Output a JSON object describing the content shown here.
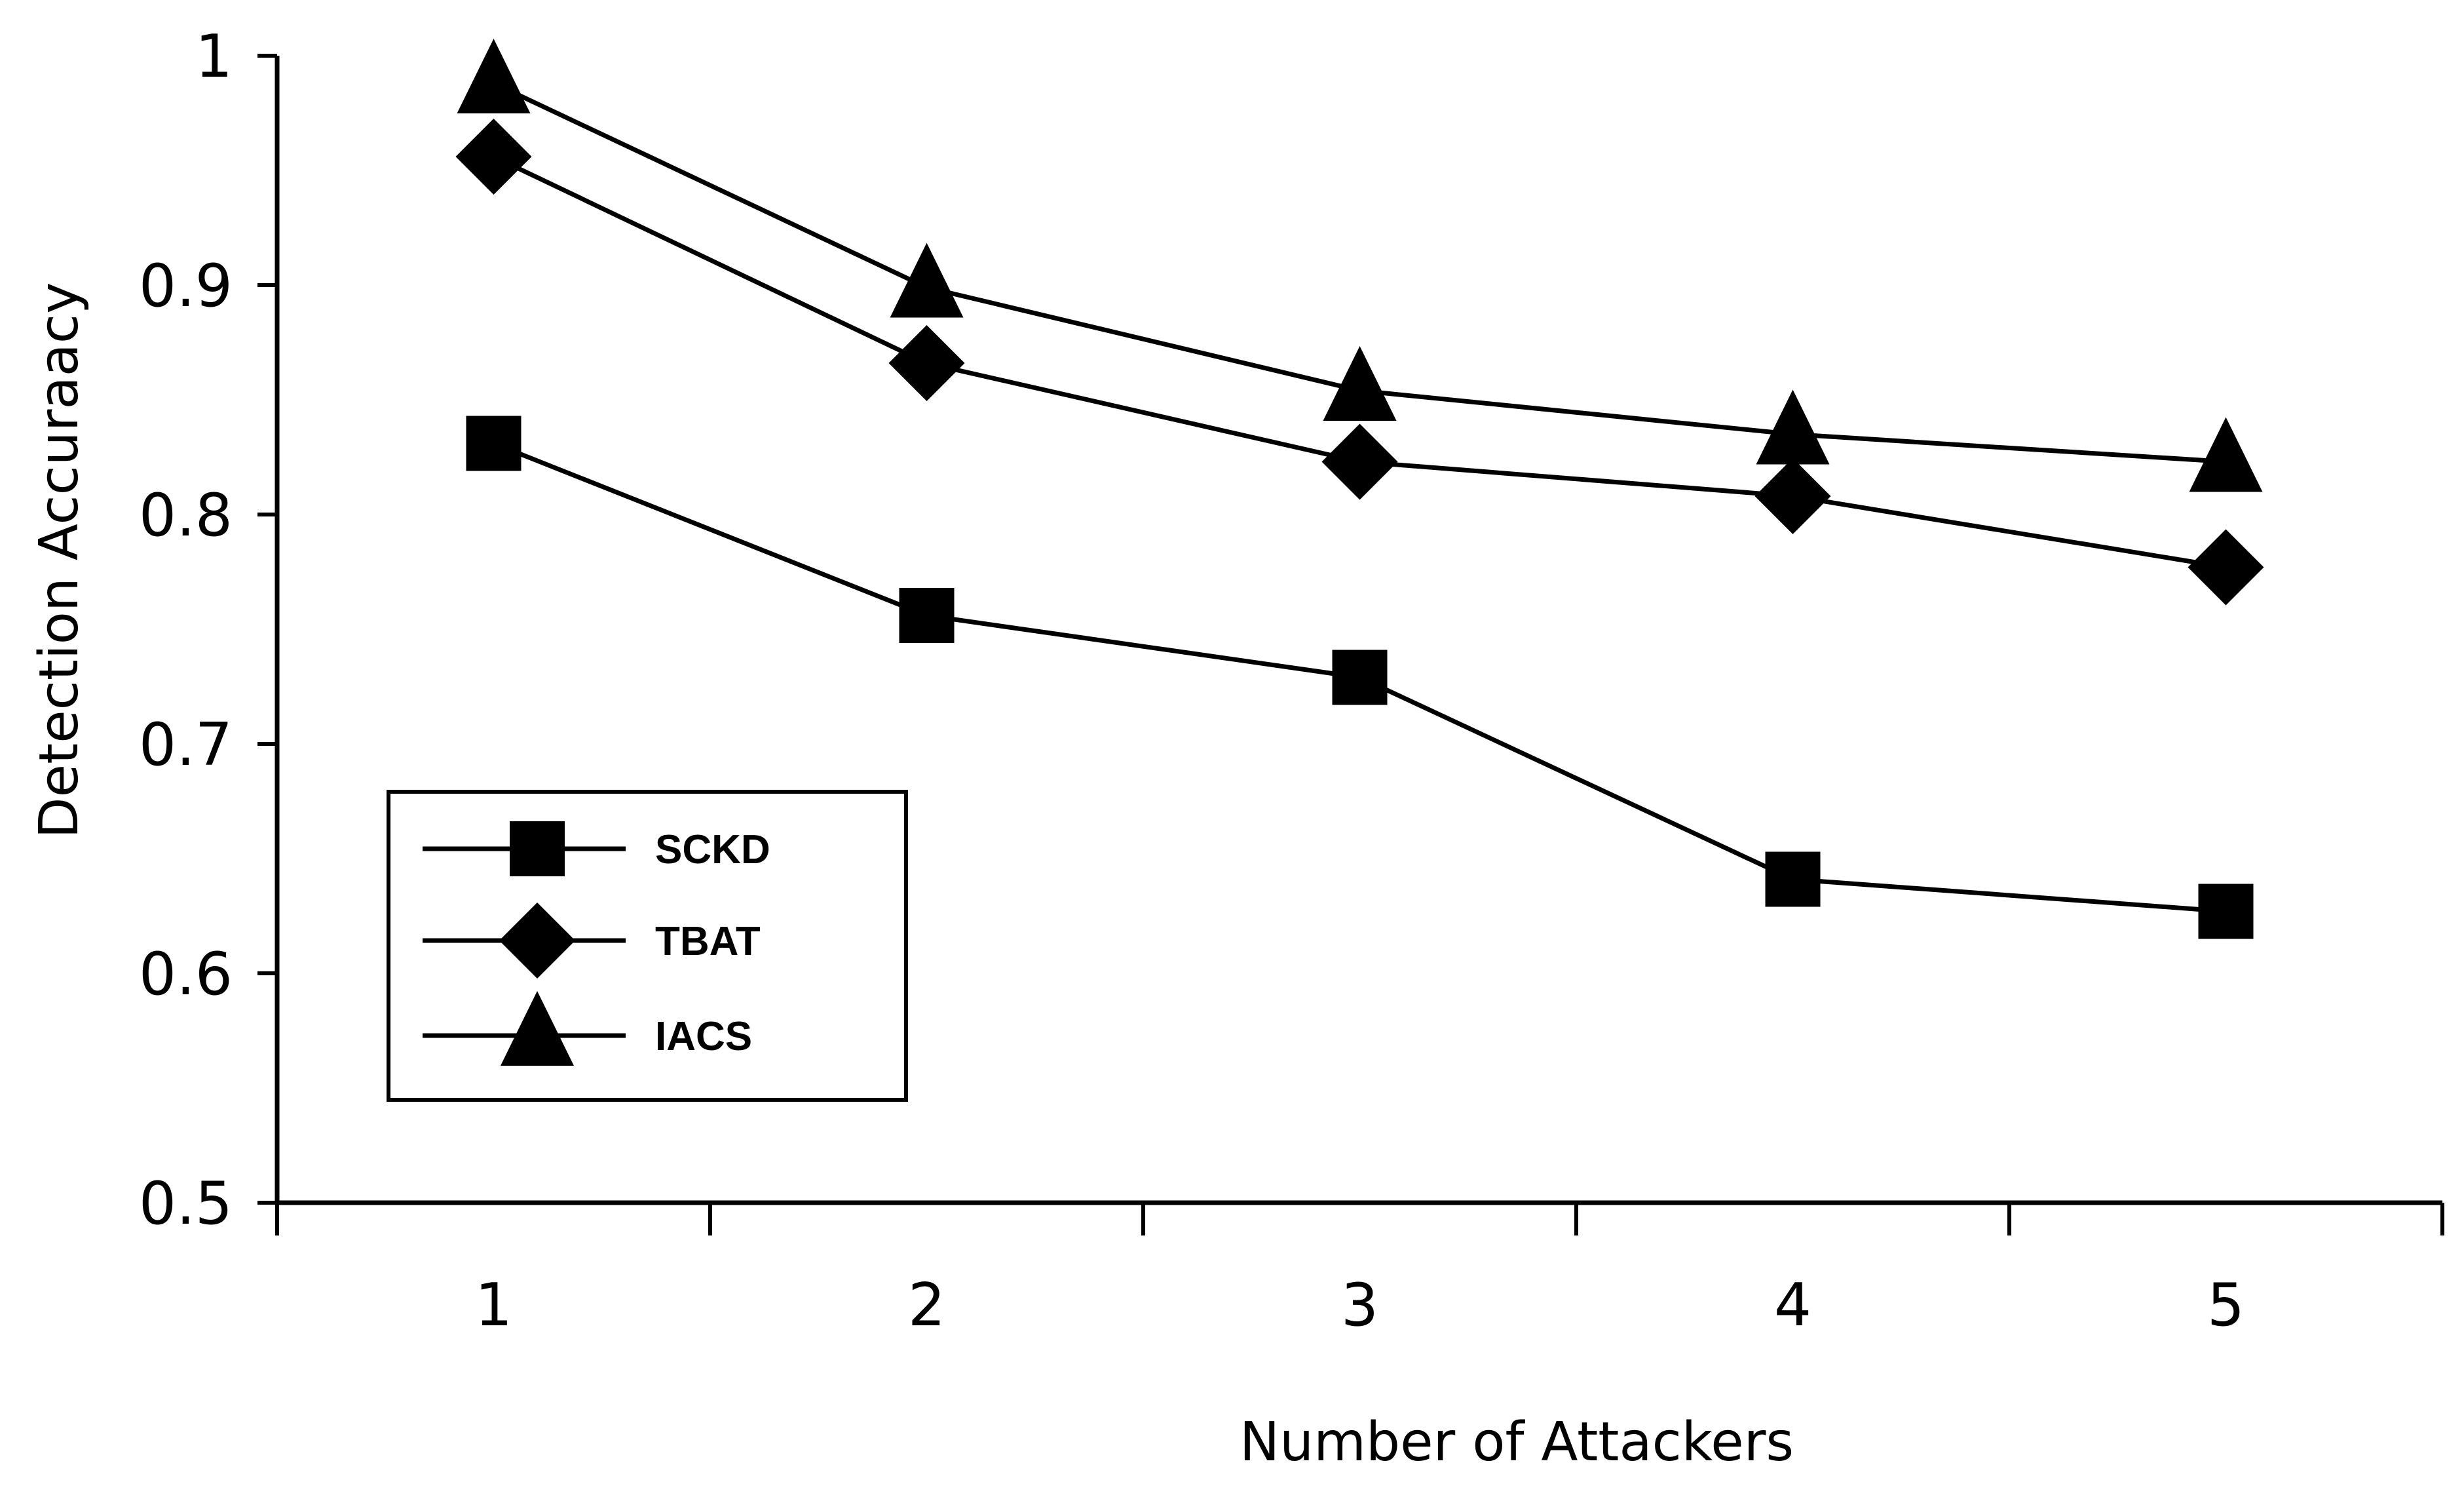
{
  "chart_data": {
    "type": "line",
    "title": "",
    "xlabel": "Number of Attackers",
    "ylabel": "Detection Accuraacy",
    "x": [
      1,
      2,
      3,
      4,
      5
    ],
    "xlim": [
      0.5,
      5.5
    ],
    "ylim": [
      0.5,
      1.0
    ],
    "yticks": [
      "0.5",
      "0.6",
      "0.7",
      "0.8",
      "0.9",
      "1"
    ],
    "xticks": [
      "1",
      "2",
      "3",
      "4",
      "5"
    ],
    "grid": false,
    "legend_position": "left-center",
    "series": [
      {
        "name": "SCKD",
        "marker": "square",
        "values": [
          0.831,
          0.756,
          0.729,
          0.641,
          0.627
        ]
      },
      {
        "name": "TBAT",
        "marker": "diamond",
        "values": [
          0.956,
          0.866,
          0.823,
          0.808,
          0.777
        ]
      },
      {
        "name": "IACS",
        "marker": "triangle",
        "values": [
          0.988,
          0.899,
          0.854,
          0.835,
          0.823
        ]
      }
    ],
    "line_color": "#000000",
    "marker_color": "#000000"
  }
}
